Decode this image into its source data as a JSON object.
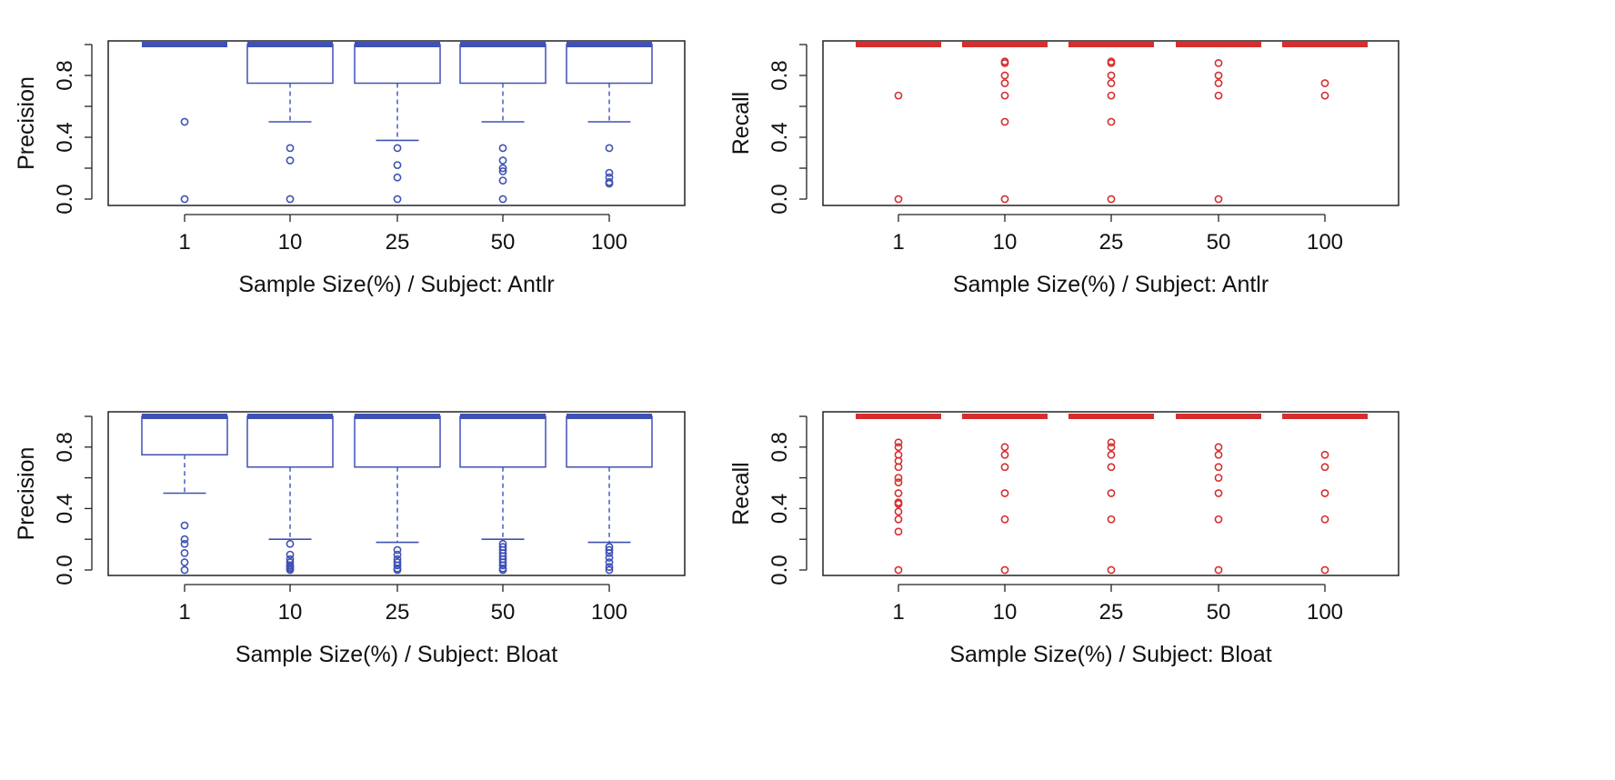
{
  "colors": {
    "precision": "#3f51b5",
    "recall": "#d62e2e",
    "axis": "#222222"
  },
  "chart_data": [
    {
      "type": "boxplot",
      "panel": "top-left",
      "ylabel": "Precision",
      "xlabel": "Sample Size(%) / Subject: Antlr",
      "categories": [
        "1",
        "10",
        "25",
        "50",
        "100"
      ],
      "yticks": [
        "0.0",
        "0.4",
        "0.8"
      ],
      "ylim": [
        0,
        1
      ],
      "grid": false,
      "boxes": [
        {
          "q1": 1.0,
          "median": 1.0,
          "q3": 1.0,
          "whisker_low": 1.0,
          "whisker_high": 1.0,
          "outliers": [
            0.5,
            0.0
          ]
        },
        {
          "q1": 0.75,
          "median": 1.0,
          "q3": 1.0,
          "whisker_low": 0.5,
          "whisker_high": 1.0,
          "outliers": [
            0.33,
            0.25,
            0.0
          ]
        },
        {
          "q1": 0.75,
          "median": 1.0,
          "q3": 1.0,
          "whisker_low": 0.38,
          "whisker_high": 1.0,
          "outliers": [
            0.33,
            0.22,
            0.14,
            0.0
          ]
        },
        {
          "q1": 0.75,
          "median": 1.0,
          "q3": 1.0,
          "whisker_low": 0.5,
          "whisker_high": 1.0,
          "outliers": [
            0.33,
            0.25,
            0.2,
            0.18,
            0.12,
            0.0
          ]
        },
        {
          "q1": 0.75,
          "median": 1.0,
          "q3": 1.0,
          "whisker_low": 0.5,
          "whisker_high": 1.0,
          "outliers": [
            0.33,
            0.17,
            0.14,
            0.11,
            0.1
          ]
        }
      ]
    },
    {
      "type": "boxplot",
      "panel": "top-right",
      "ylabel": "Recall",
      "xlabel": "Sample Size(%) / Subject: Antlr",
      "categories": [
        "1",
        "10",
        "25",
        "50",
        "100"
      ],
      "yticks": [
        "0.0",
        "0.4",
        "0.8"
      ],
      "ylim": [
        0,
        1
      ],
      "grid": false,
      "boxes": [
        {
          "q1": 1.0,
          "median": 1.0,
          "q3": 1.0,
          "whisker_low": 1.0,
          "whisker_high": 1.0,
          "outliers": [
            0.67,
            0.0
          ]
        },
        {
          "q1": 1.0,
          "median": 1.0,
          "q3": 1.0,
          "whisker_low": 1.0,
          "whisker_high": 1.0,
          "outliers": [
            0.89,
            0.88,
            0.8,
            0.75,
            0.67,
            0.5,
            0.0
          ]
        },
        {
          "q1": 1.0,
          "median": 1.0,
          "q3": 1.0,
          "whisker_low": 1.0,
          "whisker_high": 1.0,
          "outliers": [
            0.89,
            0.88,
            0.8,
            0.75,
            0.67,
            0.5,
            0.0
          ]
        },
        {
          "q1": 1.0,
          "median": 1.0,
          "q3": 1.0,
          "whisker_low": 1.0,
          "whisker_high": 1.0,
          "outliers": [
            0.88,
            0.8,
            0.75,
            0.67,
            0.0
          ]
        },
        {
          "q1": 1.0,
          "median": 1.0,
          "q3": 1.0,
          "whisker_low": 1.0,
          "whisker_high": 1.0,
          "outliers": [
            0.75,
            0.67
          ]
        }
      ]
    },
    {
      "type": "boxplot",
      "panel": "bottom-left",
      "ylabel": "Precision",
      "xlabel": "Sample Size(%) / Subject: Bloat",
      "categories": [
        "1",
        "10",
        "25",
        "50",
        "100"
      ],
      "yticks": [
        "0.0",
        "0.4",
        "0.8"
      ],
      "ylim": [
        0,
        1
      ],
      "grid": false,
      "boxes": [
        {
          "q1": 0.75,
          "median": 1.0,
          "q3": 1.0,
          "whisker_low": 0.5,
          "whisker_high": 1.0,
          "outliers": [
            0.29,
            0.2,
            0.17,
            0.11,
            0.05,
            0.0
          ]
        },
        {
          "q1": 0.67,
          "median": 1.0,
          "q3": 1.0,
          "whisker_low": 0.2,
          "whisker_high": 1.0,
          "outliers": [
            0.17,
            0.1,
            0.07,
            0.05,
            0.03,
            0.02,
            0.01,
            0.0
          ]
        },
        {
          "q1": 0.67,
          "median": 1.0,
          "q3": 1.0,
          "whisker_low": 0.18,
          "whisker_high": 1.0,
          "outliers": [
            0.13,
            0.1,
            0.07,
            0.05,
            0.03,
            0.01,
            0.0
          ]
        },
        {
          "q1": 0.67,
          "median": 1.0,
          "q3": 1.0,
          "whisker_low": 0.2,
          "whisker_high": 1.0,
          "outliers": [
            0.17,
            0.15,
            0.13,
            0.11,
            0.09,
            0.07,
            0.05,
            0.03,
            0.01,
            0.0
          ]
        },
        {
          "q1": 0.67,
          "median": 1.0,
          "q3": 1.0,
          "whisker_low": 0.18,
          "whisker_high": 1.0,
          "outliers": [
            0.15,
            0.13,
            0.11,
            0.08,
            0.05,
            0.02,
            0.0
          ]
        }
      ]
    },
    {
      "type": "boxplot",
      "panel": "bottom-right",
      "ylabel": "Recall",
      "xlabel": "Sample Size(%) / Subject: Bloat",
      "categories": [
        "1",
        "10",
        "25",
        "50",
        "100"
      ],
      "yticks": [
        "0.0",
        "0.4",
        "0.8"
      ],
      "ylim": [
        0,
        1
      ],
      "grid": false,
      "boxes": [
        {
          "q1": 1.0,
          "median": 1.0,
          "q3": 1.0,
          "whisker_low": 1.0,
          "whisker_high": 1.0,
          "outliers": [
            0.83,
            0.8,
            0.75,
            0.71,
            0.67,
            0.6,
            0.57,
            0.5,
            0.44,
            0.43,
            0.38,
            0.33,
            0.25,
            0.0
          ]
        },
        {
          "q1": 1.0,
          "median": 1.0,
          "q3": 1.0,
          "whisker_low": 1.0,
          "whisker_high": 1.0,
          "outliers": [
            0.8,
            0.75,
            0.67,
            0.5,
            0.33,
            0.0
          ]
        },
        {
          "q1": 1.0,
          "median": 1.0,
          "q3": 1.0,
          "whisker_low": 1.0,
          "whisker_high": 1.0,
          "outliers": [
            0.83,
            0.8,
            0.75,
            0.67,
            0.5,
            0.33,
            0.0
          ]
        },
        {
          "q1": 1.0,
          "median": 1.0,
          "q3": 1.0,
          "whisker_low": 1.0,
          "whisker_high": 1.0,
          "outliers": [
            0.8,
            0.75,
            0.67,
            0.6,
            0.5,
            0.33,
            0.0
          ]
        },
        {
          "q1": 1.0,
          "median": 1.0,
          "q3": 1.0,
          "whisker_low": 1.0,
          "whisker_high": 1.0,
          "outliers": [
            0.75,
            0.67,
            0.5,
            0.33,
            0.0
          ]
        }
      ]
    }
  ]
}
